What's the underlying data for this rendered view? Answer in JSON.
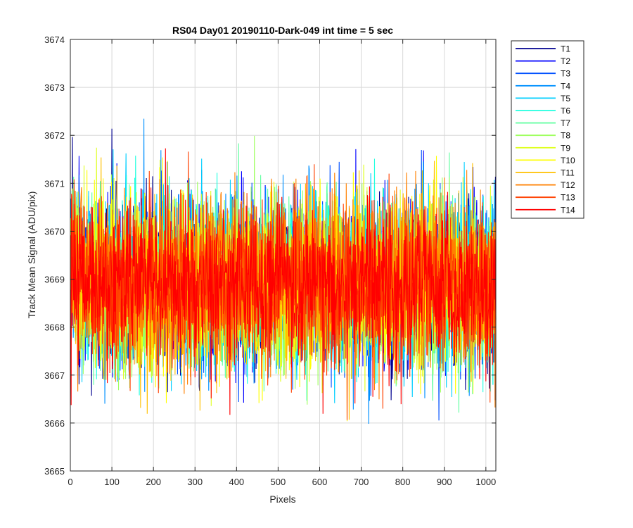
{
  "chart_data": {
    "type": "line",
    "title": "RS04 Day01 20190110-Dark-049 int time = 5 sec",
    "xlabel": "Pixels",
    "ylabel": "Track Mean Signal (ADU/pix)",
    "xlim": [
      0,
      1024
    ],
    "ylim": [
      3665,
      3674
    ],
    "xticks": [
      0,
      100,
      200,
      300,
      400,
      500,
      600,
      700,
      800,
      900,
      1000
    ],
    "yticks": [
      3665,
      3666,
      3667,
      3668,
      3669,
      3670,
      3671,
      3672,
      3673,
      3674
    ],
    "grid": true,
    "legend_position": "outside-top-right",
    "x_range_points": [
      1,
      1024
    ],
    "series": [
      {
        "name": "T1",
        "color": "#00008f",
        "center": 3668.9,
        "spread": 0.85
      },
      {
        "name": "T2",
        "color": "#0000ff",
        "center": 3668.9,
        "spread": 0.85
      },
      {
        "name": "T3",
        "color": "#0050ff",
        "center": 3668.9,
        "spread": 0.85
      },
      {
        "name": "T4",
        "color": "#0090ff",
        "center": 3668.9,
        "spread": 0.85
      },
      {
        "name": "T5",
        "color": "#00cfff",
        "center": 3668.9,
        "spread": 0.85
      },
      {
        "name": "T6",
        "color": "#20ffdf",
        "center": 3668.9,
        "spread": 0.85
      },
      {
        "name": "T7",
        "color": "#60ffa0",
        "center": 3668.9,
        "spread": 0.85
      },
      {
        "name": "T8",
        "color": "#9fff60",
        "center": 3668.9,
        "spread": 0.85
      },
      {
        "name": "T9",
        "color": "#dfff20",
        "center": 3668.9,
        "spread": 0.85
      },
      {
        "name": "T10",
        "color": "#ffff00",
        "center": 3668.9,
        "spread": 0.85
      },
      {
        "name": "T11",
        "color": "#ffc000",
        "center": 3668.9,
        "spread": 0.85
      },
      {
        "name": "T12",
        "color": "#ff8000",
        "center": 3668.9,
        "spread": 0.85
      },
      {
        "name": "T13",
        "color": "#ff4000",
        "center": 3668.9,
        "spread": 0.85
      },
      {
        "name": "T14",
        "color": "#ff0000",
        "center": 3668.9,
        "spread": 0.85
      }
    ]
  }
}
